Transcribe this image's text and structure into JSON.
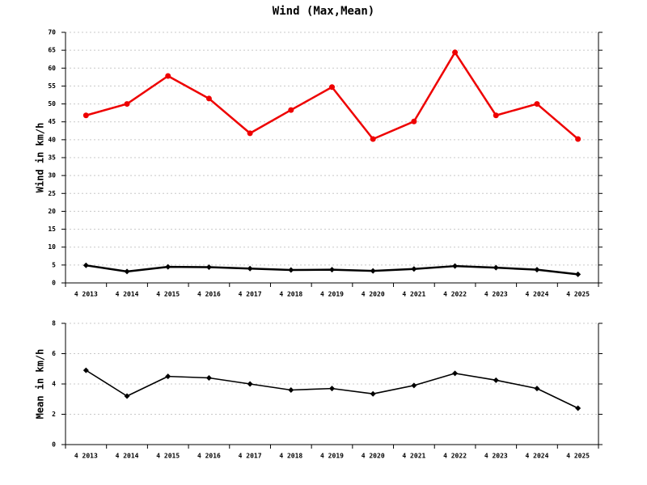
{
  "chart_data": [
    {
      "type": "line",
      "title": "Wind (Max,Mean)",
      "y_label": "Wind in km/h",
      "categories": [
        "4 2013",
        "4 2014",
        "4 2015",
        "4 2016",
        "4 2017",
        "4 2018",
        "4 2019",
        "4 2020",
        "4 2021",
        "4 2022",
        "4 2023",
        "4 2024",
        "4 2025"
      ],
      "series": [
        {
          "color": "#ee0000",
          "marker": "circle",
          "values": [
            46.8,
            50,
            57.8,
            51.5,
            41.8,
            48.3,
            54.7,
            40.2,
            45.1,
            64.4,
            46.8,
            50,
            40.2
          ]
        },
        {
          "color": "#000000",
          "marker": "diamond",
          "values": [
            4.9,
            3.2,
            4.5,
            4.4,
            4.0,
            3.6,
            3.7,
            3.35,
            3.9,
            4.7,
            4.25,
            3.7,
            2.4
          ]
        }
      ],
      "ylim": [
        0,
        70
      ],
      "yticks": [
        0,
        5,
        10,
        15,
        20,
        25,
        30,
        35,
        40,
        45,
        50,
        55,
        60,
        65,
        70
      ],
      "grid": true
    },
    {
      "type": "line",
      "y_label": "Mean in km/h",
      "categories": [
        "4 2013",
        "4 2014",
        "4 2015",
        "4 2016",
        "4 2017",
        "4 2018",
        "4 2019",
        "4 2020",
        "4 2021",
        "4 2022",
        "4 2023",
        "4 2024",
        "4 2025"
      ],
      "series": [
        {
          "color": "#000000",
          "marker": "diamond",
          "values": [
            4.9,
            3.2,
            4.5,
            4.4,
            4.0,
            3.6,
            3.7,
            3.35,
            3.9,
            4.7,
            4.25,
            3.7,
            2.4
          ]
        }
      ],
      "ylim": [
        0,
        8
      ],
      "yticks": [
        0,
        2,
        4,
        6,
        8
      ],
      "grid": true
    }
  ]
}
